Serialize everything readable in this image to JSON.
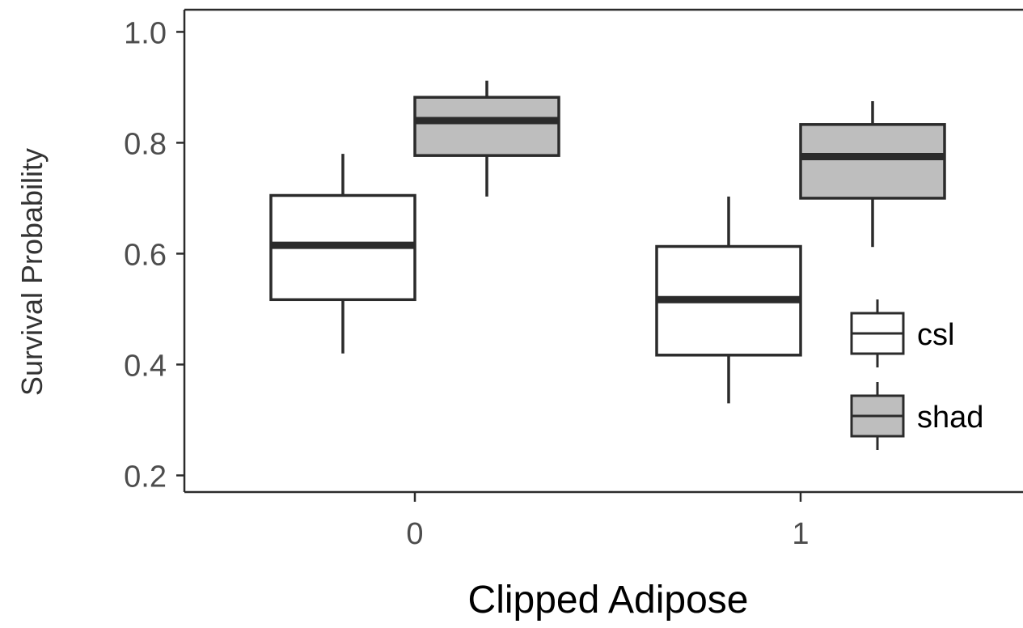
{
  "chart_data": {
    "type": "boxplot",
    "title": "",
    "xlabel": "Clipped Adipose",
    "ylabel": "Survival Probability",
    "categories": [
      "0",
      "1"
    ],
    "ylim": [
      0.17,
      1.04
    ],
    "yticks": [
      "0.2",
      "0.4",
      "0.6",
      "0.8",
      "1.0"
    ],
    "grid": false,
    "legend_position": "right",
    "series": [
      {
        "name": "csl",
        "fill": "#ffffff",
        "boxes": [
          {
            "category": "0",
            "whisker_low": 0.42,
            "q1": 0.517,
            "median": 0.615,
            "q3": 0.705,
            "whisker_high": 0.78
          },
          {
            "category": "1",
            "whisker_low": 0.33,
            "q1": 0.417,
            "median": 0.517,
            "q3": 0.613,
            "whisker_high": 0.703
          }
        ]
      },
      {
        "name": "shad",
        "fill": "#bebebe",
        "boxes": [
          {
            "category": "0",
            "whisker_low": 0.703,
            "q1": 0.777,
            "median": 0.84,
            "q3": 0.882,
            "whisker_high": 0.912
          },
          {
            "category": "1",
            "whisker_low": 0.612,
            "q1": 0.7,
            "median": 0.775,
            "q3": 0.833,
            "whisker_high": 0.875
          }
        ]
      }
    ]
  },
  "colors": {
    "line": "#2b2b2b",
    "axis_text": "#4d4d4d",
    "label_text": "#000000"
  }
}
